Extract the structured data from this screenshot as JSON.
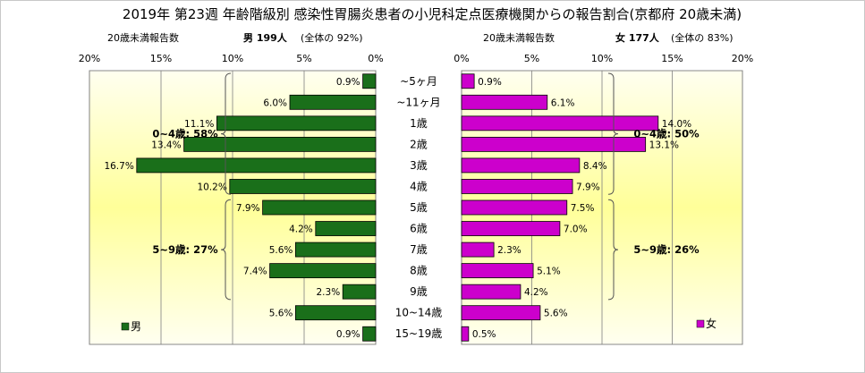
{
  "title": "2019年 第23週 年齢階級別 感染性胃腸炎患者の小児科定点医療機関からの報告割合(京都府 20歳未満)",
  "male_header": {
    "prefix": "20歳未満報告数",
    "bold": "男 199人",
    "note": "(全体の 92%)"
  },
  "female_header": {
    "prefix": "20歳未満報告数",
    "bold": "女 177人",
    "note": "(全体の 83%)"
  },
  "colors": {
    "male_bar": "#1a6f1a",
    "female_bar": "#cc00cc",
    "plot_bg_edge": "#fffff0",
    "plot_bg_center": "#ffff99",
    "grid": "#808080"
  },
  "chart_data": {
    "type": "bar",
    "orientation": "horizontal-population-pyramid",
    "categories": [
      "~5ヶ月",
      "~11ヶ月",
      "1歳",
      "2歳",
      "3歳",
      "4歳",
      "5歳",
      "6歳",
      "7歳",
      "8歳",
      "9歳",
      "10~14歳",
      "15~19歳"
    ],
    "series": [
      {
        "name": "男",
        "values": [
          0.9,
          6.0,
          11.1,
          13.4,
          16.7,
          10.2,
          7.9,
          4.2,
          5.6,
          7.4,
          2.3,
          5.6,
          0.9
        ],
        "labels": [
          "0.9%",
          "6.0%",
          "11.1%",
          "13.4%",
          "16.7%",
          "10.2%",
          "7.9%",
          "4.2%",
          "5.6%",
          "7.4%",
          "2.3%",
          "5.6%",
          "0.9%"
        ]
      },
      {
        "name": "女",
        "values": [
          0.9,
          6.1,
          14.0,
          13.1,
          8.4,
          7.9,
          7.5,
          7.0,
          2.3,
          5.1,
          4.2,
          5.6,
          0.5
        ],
        "labels": [
          "0.9%",
          "6.1%",
          "14.0%",
          "13.1%",
          "8.4%",
          "7.9%",
          "7.5%",
          "7.0%",
          "2.3%",
          "5.1%",
          "4.2%",
          "5.6%",
          "0.5%"
        ]
      }
    ],
    "xlim": [
      0,
      20
    ],
    "male_ticks": [
      "20%",
      "15%",
      "10%",
      "5%",
      "0%"
    ],
    "female_ticks": [
      "0%",
      "5%",
      "10%",
      "15%",
      "20%"
    ],
    "grid": true,
    "legend": {
      "male": "男",
      "female": "女",
      "placement": "bottom-left-of-each-panel"
    },
    "groups": {
      "male": [
        {
          "label": "0~4歳: 58%",
          "from": 0,
          "to": 5
        },
        {
          "label": "5~9歳: 27%",
          "from": 6,
          "to": 10
        }
      ],
      "female": [
        {
          "label": "0~4歳: 50%",
          "from": 0,
          "to": 5
        },
        {
          "label": "5~9歳: 26%",
          "from": 6,
          "to": 10
        }
      ]
    }
  }
}
